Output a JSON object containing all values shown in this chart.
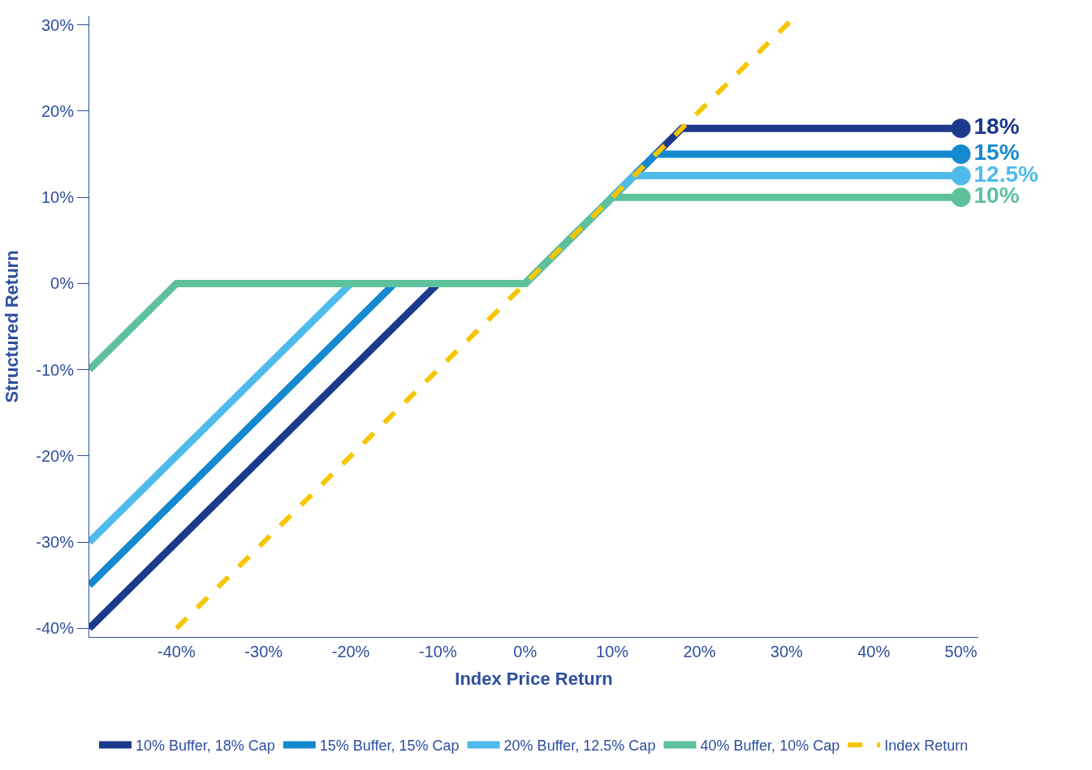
{
  "chart_data": {
    "type": "line",
    "xlabel": "Index Price Return",
    "ylabel": "Structured Return",
    "series": [
      {
        "name": "10% Buffer, 18% Cap",
        "color": "#1b3a8c",
        "x": [
          -50,
          -10,
          0,
          18,
          50
        ],
        "values": [
          -40,
          0,
          0,
          18,
          18
        ]
      },
      {
        "name": "15% Buffer, 15% Cap",
        "color": "#1589cf",
        "x": [
          -50,
          -15,
          0,
          15,
          50
        ],
        "values": [
          -35,
          0,
          0,
          15,
          15
        ]
      },
      {
        "name": "20% Buffer, 12.5% Cap",
        "color": "#4fbbea",
        "x": [
          -50,
          -20,
          0,
          12.5,
          50
        ],
        "values": [
          -30,
          0,
          0,
          12.5,
          12.5
        ]
      },
      {
        "name": "40% Buffer, 10% Cap",
        "color": "#5dc19c",
        "x": [
          -50,
          -40,
          0,
          10,
          50
        ],
        "values": [
          -10,
          0,
          0,
          10,
          10
        ]
      },
      {
        "name": "Index Return",
        "color": "#f7c600",
        "x": [
          -40,
          31
        ],
        "values": [
          -40,
          31
        ],
        "line_style": "dashed"
      },
      {
        "type": "scatter",
        "color": "#1b3a8c",
        "x": [
          50
        ],
        "values": [
          18
        ],
        "marker": "circle",
        "value_labels": [
          "18%"
        ]
      },
      {
        "type": "scatter",
        "color": "#1589cf",
        "x": [
          50
        ],
        "values": [
          15
        ],
        "marker": "circle",
        "value_labels": [
          "15%"
        ]
      },
      {
        "type": "scatter",
        "color": "#4fbbea",
        "x": [
          50
        ],
        "values": [
          12.5
        ],
        "marker": "circle",
        "value_labels": [
          "12.5%"
        ]
      },
      {
        "type": "scatter",
        "color": "#5dc19c",
        "x": [
          50
        ],
        "values": [
          10
        ],
        "marker": "circle",
        "value_labels": [
          "10%"
        ]
      }
    ],
    "xlim": [
      -50,
      52
    ],
    "ylim": [
      -41,
      31
    ],
    "xticks": [
      {
        "value": -40,
        "label": "-40%"
      },
      {
        "value": -30,
        "label": "-30%"
      },
      {
        "value": -20,
        "label": "-20%"
      },
      {
        "value": -10,
        "label": "-10%"
      },
      {
        "value": 0,
        "label": "0%"
      },
      {
        "value": 10,
        "label": "10%"
      },
      {
        "value": 20,
        "label": "20%"
      },
      {
        "value": 30,
        "label": "30%"
      },
      {
        "value": 40,
        "label": "40%"
      },
      {
        "value": 50,
        "label": "50%"
      }
    ],
    "yticks": [
      {
        "value": -40,
        "label": "-40%"
      },
      {
        "value": -30,
        "label": "-30%"
      },
      {
        "value": -20,
        "label": "-20%"
      },
      {
        "value": -10,
        "label": "-10%"
      },
      {
        "value": 0,
        "label": "0%"
      },
      {
        "value": 10,
        "label": "10%"
      },
      {
        "value": 20,
        "label": "20%"
      },
      {
        "value": 30,
        "label": "30%"
      }
    ],
    "legend": "bottom",
    "line_style": "solid"
  }
}
